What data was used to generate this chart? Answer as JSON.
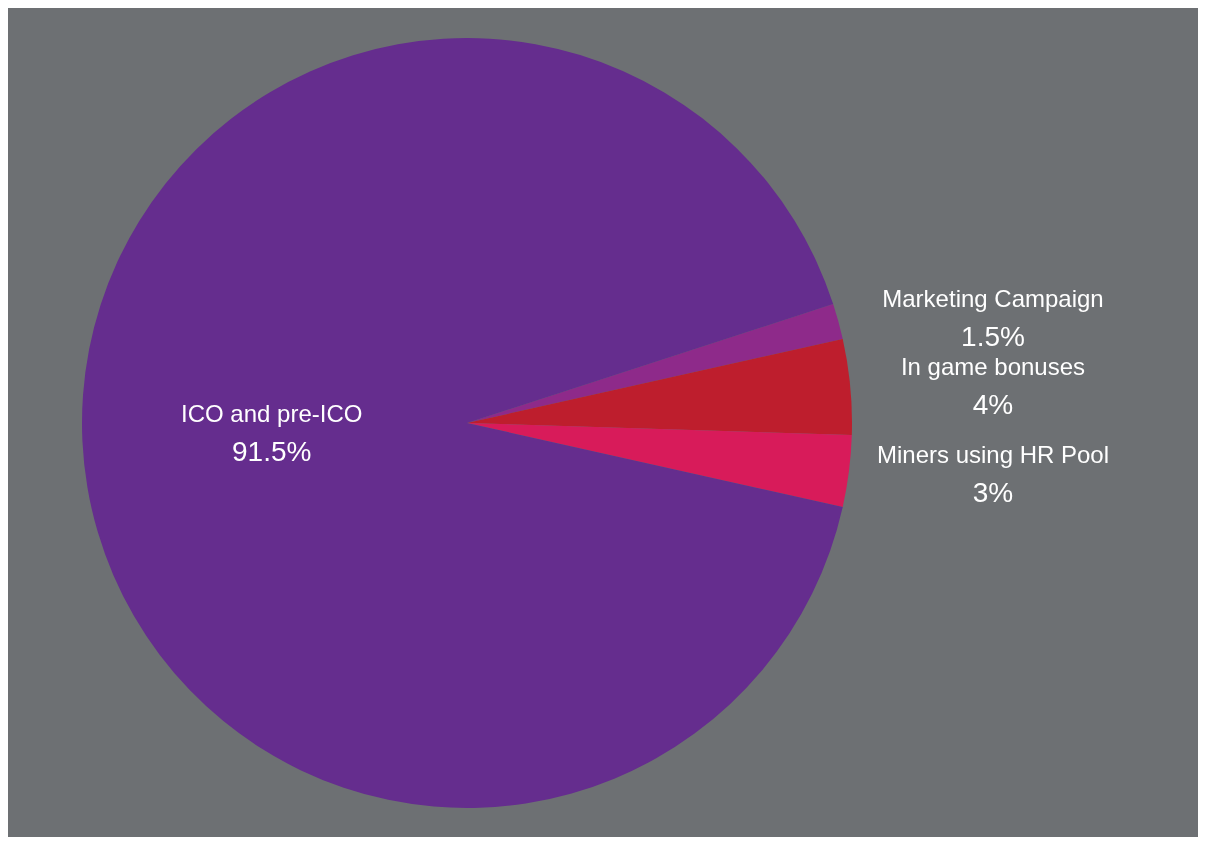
{
  "chart_data": {
    "type": "pie",
    "categories": [
      "Marketing Campaign",
      "In game bonuses",
      "Miners using HR Pool",
      "ICO and pre-ICO"
    ],
    "values": [
      1.5,
      4,
      3,
      91.5
    ],
    "colors": [
      "#8e2a8a",
      "#be1e2d",
      "#d81b5a",
      "#652d8e"
    ],
    "value_labels": [
      "1.5%",
      "4%",
      "3%",
      "91.5%"
    ]
  }
}
